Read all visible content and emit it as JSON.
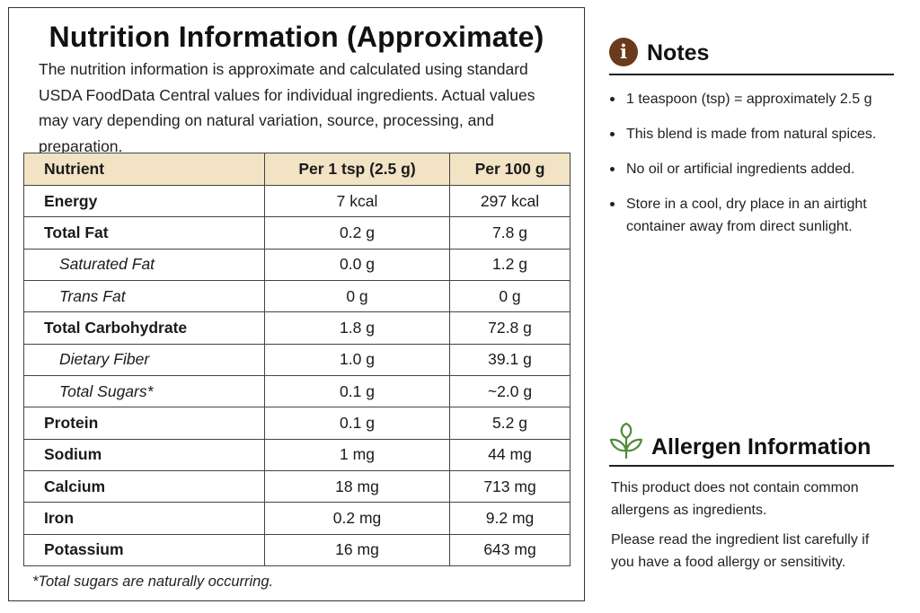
{
  "nutrition": {
    "title": "Nutrition Information (Approximate)",
    "intro": "The nutrition information is approximate and calculated using standard USDA FoodData Central values for individual ingredients. Actual values may vary depending on natural variation, source, processing, and preparation.",
    "headers": [
      "Nutrient",
      "Per 1 tsp (2.5 g)",
      "Per 100 g"
    ],
    "rows": [
      {
        "name": "Energy",
        "per_tsp": "7 kcal",
        "per_100g": "297 kcal",
        "indent": false
      },
      {
        "name": "Total Fat",
        "per_tsp": "0.2 g",
        "per_100g": "7.8 g",
        "indent": false
      },
      {
        "name": "Saturated Fat",
        "per_tsp": "0.0 g",
        "per_100g": "1.2 g",
        "indent": true
      },
      {
        "name": "Trans Fat",
        "per_tsp": "0 g",
        "per_100g": "0 g",
        "indent": true
      },
      {
        "name": "Total Carbohydrate",
        "per_tsp": "1.8 g",
        "per_100g": "72.8 g",
        "indent": false
      },
      {
        "name": "Dietary Fiber",
        "per_tsp": "1.0 g",
        "per_100g": "39.1 g",
        "indent": true
      },
      {
        "name": "Total Sugars*",
        "per_tsp": "0.1 g",
        "per_100g": "~2.0 g",
        "indent": true
      },
      {
        "name": "Protein",
        "per_tsp": "0.1 g",
        "per_100g": "5.2 g",
        "indent": false
      },
      {
        "name": "Sodium",
        "per_tsp": "1 mg",
        "per_100g": "44 mg",
        "indent": false
      },
      {
        "name": "Calcium",
        "per_tsp": "18 mg",
        "per_100g": "713 mg",
        "indent": false
      },
      {
        "name": "Iron",
        "per_tsp": "0.2 mg",
        "per_100g": "9.2 mg",
        "indent": false
      },
      {
        "name": "Potassium",
        "per_tsp": "16 mg",
        "per_100g": "643 mg",
        "indent": false
      }
    ],
    "footnote": "*Total sugars are naturally occurring."
  },
  "notes": {
    "icon": "info-icon",
    "icon_glyph": "i",
    "title": "Notes",
    "items": [
      "1 teaspoon (tsp) = approximately 2.5 g",
      "This blend is made from natural spices.",
      "No oil or artificial ingredients added.",
      "Store in a cool, dry place in an airtight container away from direct sunlight."
    ]
  },
  "allergen": {
    "icon": "leaf-sprout-icon",
    "title": "Allergen Information",
    "paragraphs": [
      "This product does not contain common allergens as ingredients.",
      "Please read the ingredient list carefully if you have a food allergy or sensitivity."
    ]
  },
  "colors": {
    "header_fill": "#f1e3c4",
    "info_icon_bg": "#6b3a1c",
    "leaf_icon": "#4f8a35"
  }
}
